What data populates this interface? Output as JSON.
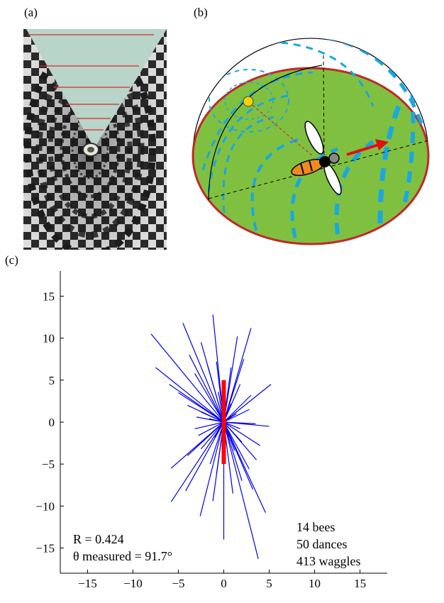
{
  "panel_labels": {
    "a": "(a)",
    "b": "(b)",
    "c": "(c)"
  },
  "stats": {
    "r_label": "R = 0.424",
    "theta_label": "θ measured = 91.7°",
    "bees": "14 bees",
    "dances": "50 dances",
    "waggles": "413 waggles"
  },
  "colors": {
    "vector_lines": "#0000ee",
    "mean_vector": "#ff0000",
    "floor_green": "#80c040",
    "dash_blue": "#19a8e0",
    "rim_red": "#c0282a"
  },
  "chart_data": {
    "type": "scatter",
    "description_kind": "radial vector plot",
    "xlim": [
      -18,
      18
    ],
    "ylim": [
      -18,
      18
    ],
    "xticks": [
      -15,
      -10,
      -5,
      0,
      5,
      10,
      15
    ],
    "yticks": [
      15,
      10,
      5,
      0,
      -5,
      -10,
      -15
    ],
    "vectors": [
      [
        -8.0,
        10.5
      ],
      [
        -4.5,
        11.8
      ],
      [
        -1.2,
        12.8
      ],
      [
        3.0,
        11.2
      ],
      [
        -7.5,
        6.5
      ],
      [
        -6.0,
        4.5
      ],
      [
        -5.0,
        3.5
      ],
      [
        -3.8,
        8.0
      ],
      [
        -2.5,
        9.5
      ],
      [
        1.5,
        10.2
      ],
      [
        2.2,
        7.5
      ],
      [
        -4.0,
        2.0
      ],
      [
        -3.2,
        5.8
      ],
      [
        -1.8,
        6.8
      ],
      [
        -0.8,
        7.2
      ],
      [
        0.8,
        6.5
      ],
      [
        1.8,
        4.5
      ],
      [
        3.0,
        3.2
      ],
      [
        5.2,
        4.5
      ],
      [
        2.8,
        1.5
      ],
      [
        -2.5,
        1.2
      ],
      [
        -3.0,
        0.6
      ],
      [
        5.0,
        -0.5
      ],
      [
        3.5,
        -0.2
      ],
      [
        -3.2,
        -0.8
      ],
      [
        -2.8,
        -1.6
      ],
      [
        -5.8,
        -5.5
      ],
      [
        -4.0,
        -4.0
      ],
      [
        -2.5,
        -3.2
      ],
      [
        -1.5,
        -5.0
      ],
      [
        -0.8,
        -6.2
      ],
      [
        -5.8,
        -9.5
      ],
      [
        -4.2,
        -8.2
      ],
      [
        -2.6,
        -11.2
      ],
      [
        -1.2,
        -9.4
      ],
      [
        0.0,
        -14.0
      ],
      [
        1.0,
        -8.5
      ],
      [
        2.0,
        -7.0
      ],
      [
        2.8,
        -5.6
      ],
      [
        3.6,
        -4.5
      ],
      [
        4.6,
        -10.8
      ],
      [
        3.8,
        -16.3
      ],
      [
        3.2,
        -8.0
      ],
      [
        4.0,
        -2.8
      ],
      [
        2.0,
        -2.4
      ],
      [
        1.2,
        -3.4
      ],
      [
        -1.0,
        -1.8
      ],
      [
        0.8,
        2.2
      ],
      [
        -0.6,
        3.6
      ],
      [
        1.4,
        1.0
      ],
      [
        -1.6,
        0.4
      ],
      [
        1.8,
        -0.8
      ]
    ],
    "mean_vector": {
      "x": 0.0,
      "y_from": -5.0,
      "y_to": 5.0
    },
    "summary": {
      "R": 0.424,
      "theta_measured_deg": 91.7,
      "bees": 14,
      "dances": 50,
      "waggles": 413
    }
  }
}
